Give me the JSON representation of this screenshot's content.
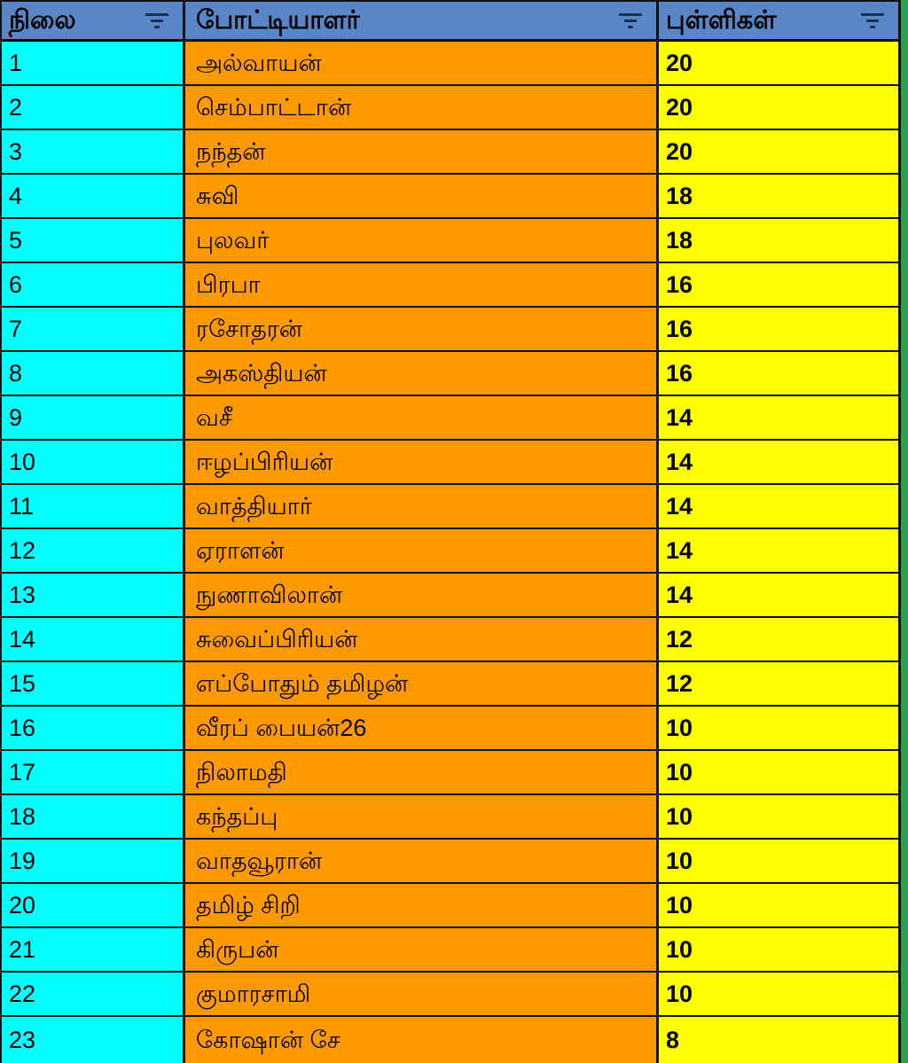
{
  "table": {
    "columns": [
      {
        "label": "நிலை"
      },
      {
        "label": "போட்டியாளர்"
      },
      {
        "label": "புள்ளிகள்"
      }
    ],
    "rows": [
      {
        "rank": "1",
        "name": "அல்வாயன்",
        "points": "20"
      },
      {
        "rank": "2",
        "name": "செம்பாட்டான்",
        "points": "20"
      },
      {
        "rank": "3",
        "name": "நந்தன்",
        "points": "20"
      },
      {
        "rank": "4",
        "name": "சுவி",
        "points": "18"
      },
      {
        "rank": "5",
        "name": "புலவர்",
        "points": "18"
      },
      {
        "rank": "6",
        "name": "பிரபா",
        "points": "16"
      },
      {
        "rank": "7",
        "name": "ரசோதரன்",
        "points": "16"
      },
      {
        "rank": "8",
        "name": "அகஸ்தியன்",
        "points": "16"
      },
      {
        "rank": "9",
        "name": "வசீ",
        "points": "14"
      },
      {
        "rank": "10",
        "name": "ஈழப்பிரியன்",
        "points": "14"
      },
      {
        "rank": "11",
        "name": "வாத்தியார்",
        "points": "14"
      },
      {
        "rank": "12",
        "name": "ஏராளன்",
        "points": "14"
      },
      {
        "rank": "13",
        "name": "நுணாவிலான்",
        "points": "14"
      },
      {
        "rank": "14",
        "name": "சுவைப்பிரியன்",
        "points": "12"
      },
      {
        "rank": "15",
        "name": "எப்போதும் தமிழன்",
        "points": "12"
      },
      {
        "rank": "16",
        "name": "வீரப் பையன்26",
        "points": "10"
      },
      {
        "rank": "17",
        "name": "நிலாமதி",
        "points": "10"
      },
      {
        "rank": "18",
        "name": "கந்தப்பு",
        "points": "10"
      },
      {
        "rank": "19",
        "name": "வாதவூரான்",
        "points": "10"
      },
      {
        "rank": "20",
        "name": "தமிழ் சிறி",
        "points": "10"
      },
      {
        "rank": "21",
        "name": "கிருபன்",
        "points": "10"
      },
      {
        "rank": "22",
        "name": "குமாரசாமி",
        "points": "10"
      },
      {
        "rank": "23",
        "name": "கோஷான் சே",
        "points": "8"
      }
    ]
  },
  "icons": {
    "header_filter": "filter-icon"
  },
  "colors": {
    "header_bg": "#5886c6",
    "rank_bg": "#00ffff",
    "name_bg": "#ff9900",
    "points_bg": "#ffff00",
    "border": "#111111",
    "edge_strip": "#2fa14e",
    "icon": "#16304e",
    "text": "#000000"
  }
}
